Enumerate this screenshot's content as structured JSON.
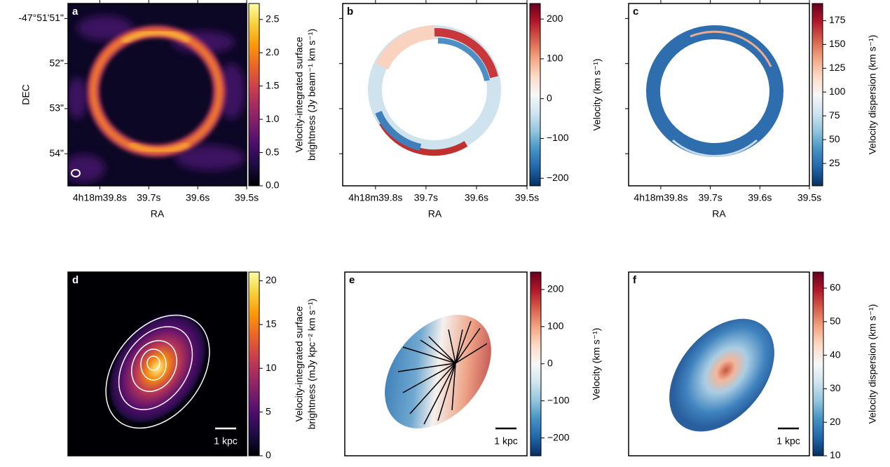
{
  "chart_data": [
    {
      "type": "heatmap",
      "panel": "a",
      "colormap": "inferno",
      "xlabel": "RA",
      "ylabel": "DEC",
      "xlim": [
        39.865,
        39.5
      ],
      "xticks": [
        {
          "value": 39.8,
          "label": "4h18m39.8s"
        },
        {
          "value": 39.7,
          "label": "39.7s"
        },
        {
          "value": 39.6,
          "label": "39.6s"
        },
        {
          "value": 39.5,
          "label": "39.5s"
        }
      ],
      "ylim": [
        54.712,
        50.667
      ],
      "yticks": [
        {
          "value": 51,
          "label": "-47°51'51\""
        },
        {
          "value": 52,
          "label": "52\""
        },
        {
          "value": 53,
          "label": "53\""
        },
        {
          "value": 54,
          "label": "54\""
        }
      ],
      "colorbar": {
        "label": [
          "Velocity-integrated surface",
          "brightness (Jy beam⁻¹ km s⁻¹)"
        ],
        "lim": [
          0,
          2.74
        ],
        "ticks": [
          {
            "value": 0,
            "label": "0.0"
          },
          {
            "value": 0.5,
            "label": "0.5"
          },
          {
            "value": 1,
            "label": "1.0"
          },
          {
            "value": 1.5,
            "label": "1.5"
          },
          {
            "value": 2,
            "label": "2.0"
          },
          {
            "value": 2.5,
            "label": "2.5"
          }
        ]
      }
    },
    {
      "type": "heatmap",
      "panel": "b",
      "colormap": "RdBu_r",
      "xlabel": "RA",
      "xlim": [
        39.865,
        39.5
      ],
      "xticks": [
        {
          "value": 39.8,
          "label": "4h18m39.8s"
        },
        {
          "value": 39.7,
          "label": "39.7s"
        },
        {
          "value": 39.6,
          "label": "39.6s"
        },
        {
          "value": 39.5,
          "label": "39.5s"
        }
      ],
      "colorbar": {
        "label": [
          "Velocity (km s⁻¹)"
        ],
        "lim": [
          -219,
          239
        ],
        "ticks": [
          {
            "value": -200,
            "label": "−200"
          },
          {
            "value": -100,
            "label": "−100"
          },
          0,
          100,
          200
        ]
      }
    },
    {
      "type": "heatmap",
      "panel": "c",
      "colormap": "RdBu_r",
      "xlabel": "RA",
      "xlim": [
        39.865,
        39.5
      ],
      "xticks": [
        {
          "value": 39.8,
          "label": "4h18m39.8s"
        },
        {
          "value": 39.7,
          "label": "39.7s"
        },
        {
          "value": 39.6,
          "label": "39.6s"
        },
        {
          "value": 39.5,
          "label": "39.5s"
        }
      ],
      "colorbar": {
        "label": [
          "Velocity dispersion (km s⁻¹)"
        ],
        "lim": [
          1.5,
          193
        ],
        "ticks": [
          25,
          50,
          75,
          100,
          125,
          150,
          175
        ]
      }
    },
    {
      "type": "heatmap",
      "panel": "d",
      "colormap": "inferno",
      "scalebar": "1 kpc",
      "colorbar": {
        "label": [
          "Velocity-integrated surface",
          "brightness (mJy kpc⁻² km s⁻¹)"
        ],
        "lim": [
          0,
          21
        ],
        "ticks": [
          0,
          5,
          10,
          15,
          20
        ]
      }
    },
    {
      "type": "heatmap",
      "panel": "e",
      "colormap": "RdBu_r",
      "scalebar": "1 kpc",
      "colorbar": {
        "label": [
          "Velocity (km s⁻¹)"
        ],
        "lim": [
          -248,
          247
        ],
        "ticks": [
          {
            "value": -200,
            "label": "−200"
          },
          {
            "value": -100,
            "label": "−100"
          },
          0,
          100,
          200
        ]
      }
    },
    {
      "type": "heatmap",
      "panel": "f",
      "colormap": "RdBu_r",
      "scalebar": "1 kpc",
      "colorbar": {
        "label": [
          "Velocity dispersion (km s⁻¹)"
        ],
        "lim": [
          10,
          64.8
        ],
        "ticks": [
          10,
          20,
          30,
          40,
          50,
          60
        ]
      }
    }
  ]
}
